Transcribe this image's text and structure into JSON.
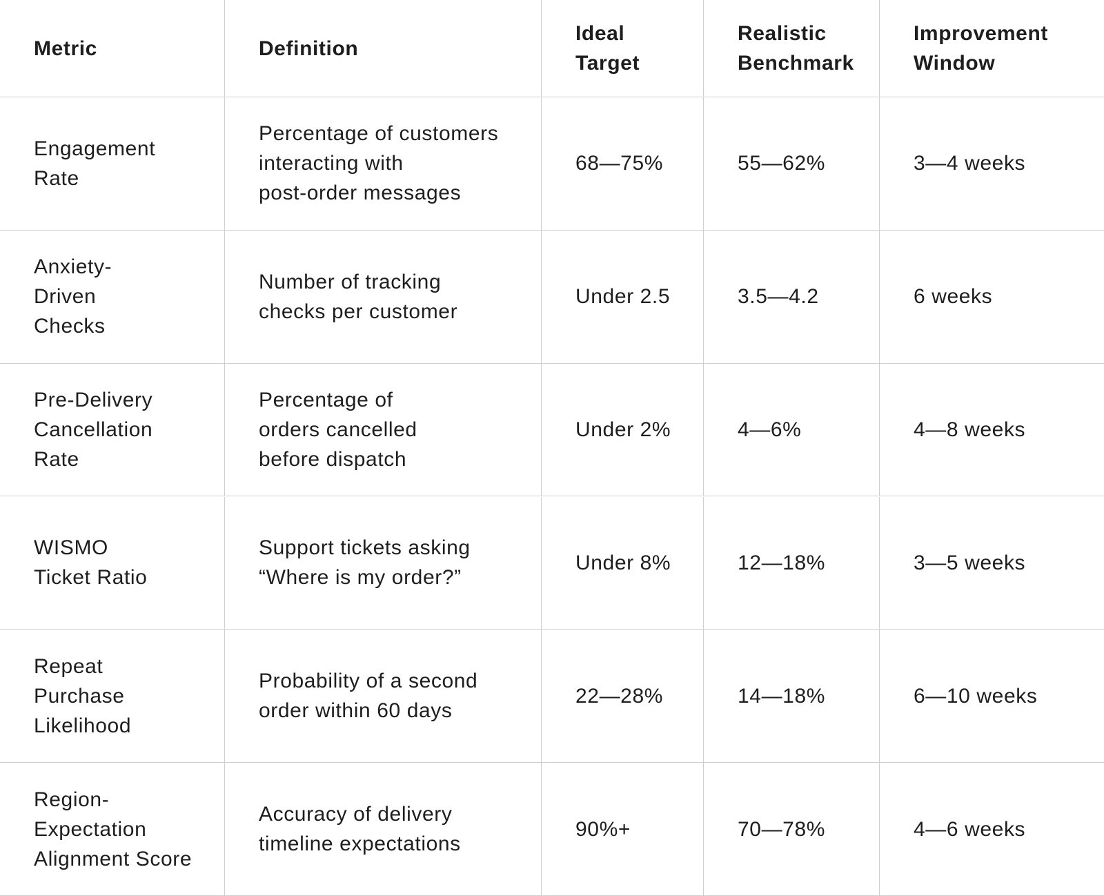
{
  "table": {
    "header": [
      [
        "Metric"
      ],
      [
        "Definition"
      ],
      [
        "Ideal",
        "Target"
      ],
      [
        "Realistic",
        "Benchmark"
      ],
      [
        "Improvement",
        "Window"
      ]
    ],
    "rows": [
      [
        [
          "Engagement",
          "Rate"
        ],
        [
          "Percentage of customers",
          "interacting with",
          "post-order messages"
        ],
        [
          "68—75%"
        ],
        [
          "55—62%"
        ],
        [
          "3—4 weeks"
        ]
      ],
      [
        [
          "Anxiety-",
          "Driven",
          "Checks"
        ],
        [
          "Number of tracking",
          "checks per customer"
        ],
        [
          "Under 2.5"
        ],
        [
          "3.5—4.2"
        ],
        [
          "6 weeks"
        ]
      ],
      [
        [
          "Pre-Delivery",
          "Cancellation",
          "Rate"
        ],
        [
          "Percentage of",
          "orders cancelled",
          "before dispatch"
        ],
        [
          "Under 2%"
        ],
        [
          "4—6%"
        ],
        [
          "4—8 weeks"
        ]
      ],
      [
        [
          "WISMO",
          "Ticket Ratio"
        ],
        [
          "Support tickets asking",
          "“Where is my order?”"
        ],
        [
          "Under 8%"
        ],
        [
          "12—18%"
        ],
        [
          "3—5 weeks"
        ]
      ],
      [
        [
          "Repeat",
          "Purchase",
          "Likelihood"
        ],
        [
          "Probability of a second",
          "order within 60 days"
        ],
        [
          "22—28%"
        ],
        [
          "14—18%"
        ],
        [
          "6—10 weeks"
        ]
      ],
      [
        [
          "Region-",
          "Expectation",
          "Alignment Score"
        ],
        [
          "Accuracy of delivery",
          "timeline expectations"
        ],
        [
          "90%+"
        ],
        [
          "70—78%"
        ],
        [
          "4—6 weeks"
        ]
      ]
    ]
  }
}
